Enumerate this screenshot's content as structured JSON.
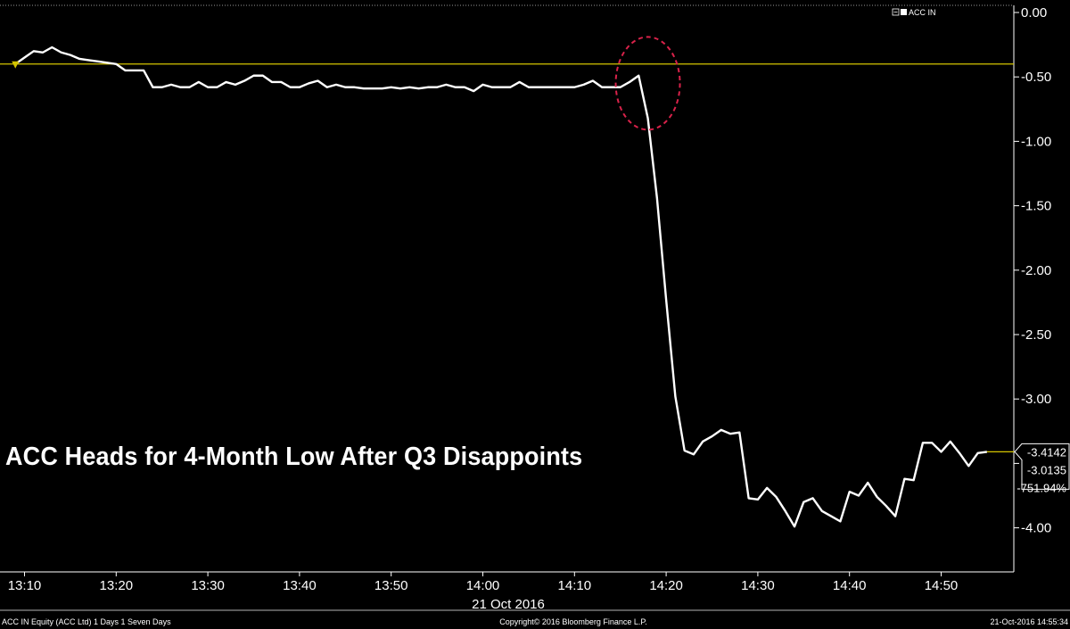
{
  "chart_data": {
    "type": "line",
    "title": "ACC Heads for 4-Month Low After Q3 Disappoints",
    "xlabel": "21 Oct 2016",
    "ylabel": "",
    "ylim": [
      -4.4,
      0.0
    ],
    "y_ticks": [
      0.0,
      -0.5,
      -1.0,
      -1.5,
      -2.0,
      -2.5,
      -3.0,
      -3.5,
      -4.0
    ],
    "y_tick_labels": [
      "0.00",
      "-0.50",
      "-1.00",
      "-1.50",
      "-2.00",
      "-2.50",
      "-3.00",
      "",
      "-4.00"
    ],
    "x_ticks": [
      "13:10",
      "13:20",
      "13:30",
      "13:40",
      "13:50",
      "14:00",
      "14:10",
      "14:20",
      "14:30",
      "14:40",
      "14:50"
    ],
    "series": [
      {
        "name": "ACC IN",
        "color": "#ffffff",
        "x": [
          "13:09",
          "13:10",
          "13:11",
          "13:12",
          "13:13",
          "13:14",
          "13:15",
          "13:16",
          "13:17",
          "13:18",
          "13:19",
          "13:20",
          "13:21",
          "13:22",
          "13:23",
          "13:24",
          "13:25",
          "13:26",
          "13:27",
          "13:28",
          "13:29",
          "13:30",
          "13:31",
          "13:32",
          "13:33",
          "13:34",
          "13:35",
          "13:36",
          "13:37",
          "13:38",
          "13:39",
          "13:40",
          "13:41",
          "13:42",
          "13:43",
          "13:44",
          "13:45",
          "13:46",
          "13:47",
          "13:48",
          "13:49",
          "13:50",
          "13:51",
          "13:52",
          "13:53",
          "13:54",
          "13:55",
          "13:56",
          "13:57",
          "13:58",
          "13:59",
          "14:00",
          "14:01",
          "14:02",
          "14:03",
          "14:04",
          "14:05",
          "14:06",
          "14:07",
          "14:08",
          "14:09",
          "14:10",
          "14:11",
          "14:12",
          "14:13",
          "14:14",
          "14:15",
          "14:16",
          "14:17",
          "14:18",
          "14:19",
          "14:20",
          "14:21",
          "14:22",
          "14:23",
          "14:24",
          "14:25",
          "14:26",
          "14:27",
          "14:28",
          "14:29",
          "14:30",
          "14:31",
          "14:32",
          "14:33",
          "14:34",
          "14:35",
          "14:36",
          "14:37",
          "14:38",
          "14:39",
          "14:40",
          "14:41",
          "14:42",
          "14:43",
          "14:44",
          "14:45",
          "14:46",
          "14:47",
          "14:48",
          "14:49",
          "14:50",
          "14:51",
          "14:52",
          "14:53",
          "14:54",
          "14:55"
        ],
        "values": [
          -0.4,
          -0.35,
          -0.3,
          -0.31,
          -0.27,
          -0.31,
          -0.33,
          -0.36,
          -0.37,
          -0.38,
          -0.39,
          -0.4,
          -0.45,
          -0.45,
          -0.45,
          -0.58,
          -0.58,
          -0.56,
          -0.58,
          -0.58,
          -0.54,
          -0.58,
          -0.58,
          -0.54,
          -0.56,
          -0.53,
          -0.49,
          -0.49,
          -0.54,
          -0.54,
          -0.58,
          -0.58,
          -0.55,
          -0.53,
          -0.58,
          -0.56,
          -0.58,
          -0.58,
          -0.59,
          -0.59,
          -0.59,
          -0.58,
          -0.59,
          -0.58,
          -0.59,
          -0.58,
          -0.58,
          -0.56,
          -0.58,
          -0.58,
          -0.61,
          -0.56,
          -0.58,
          -0.58,
          -0.58,
          -0.54,
          -0.58,
          -0.58,
          -0.58,
          -0.58,
          -0.58,
          -0.58,
          -0.56,
          -0.53,
          -0.58,
          -0.58,
          -0.58,
          -0.54,
          -0.49,
          -0.82,
          -1.44,
          -2.23,
          -2.98,
          -3.4,
          -3.43,
          -3.33,
          -3.29,
          -3.24,
          -3.27,
          -3.26,
          -3.77,
          -3.78,
          -3.69,
          -3.76,
          -3.87,
          -3.99,
          -3.8,
          -3.77,
          -3.87,
          -3.91,
          -3.95,
          -3.72,
          -3.75,
          -3.65,
          -3.76,
          -3.83,
          -3.91,
          -3.62,
          -3.63,
          -3.34,
          -3.34,
          -3.41,
          -3.33,
          -3.42,
          -3.52,
          -3.42,
          -3.41
        ]
      }
    ],
    "reference_line": {
      "value": -0.4,
      "color": "#d4c400"
    },
    "last_values": [
      "-3.4142",
      "-3.0135",
      "-751.94%"
    ],
    "annotation": {
      "shape": "dashed-ellipse",
      "color": "#d8224a",
      "at": "14:18"
    },
    "legend": {
      "position": "top-right",
      "label": "ACC IN"
    },
    "grid": false
  },
  "footer": {
    "left": "ACC IN Equity (ACC Ltd) 1 Days 1 Seven Days",
    "center": "Copyright© 2016 Bloomberg Finance L.P.",
    "right": "21-Oct-2016 14:55:34"
  }
}
